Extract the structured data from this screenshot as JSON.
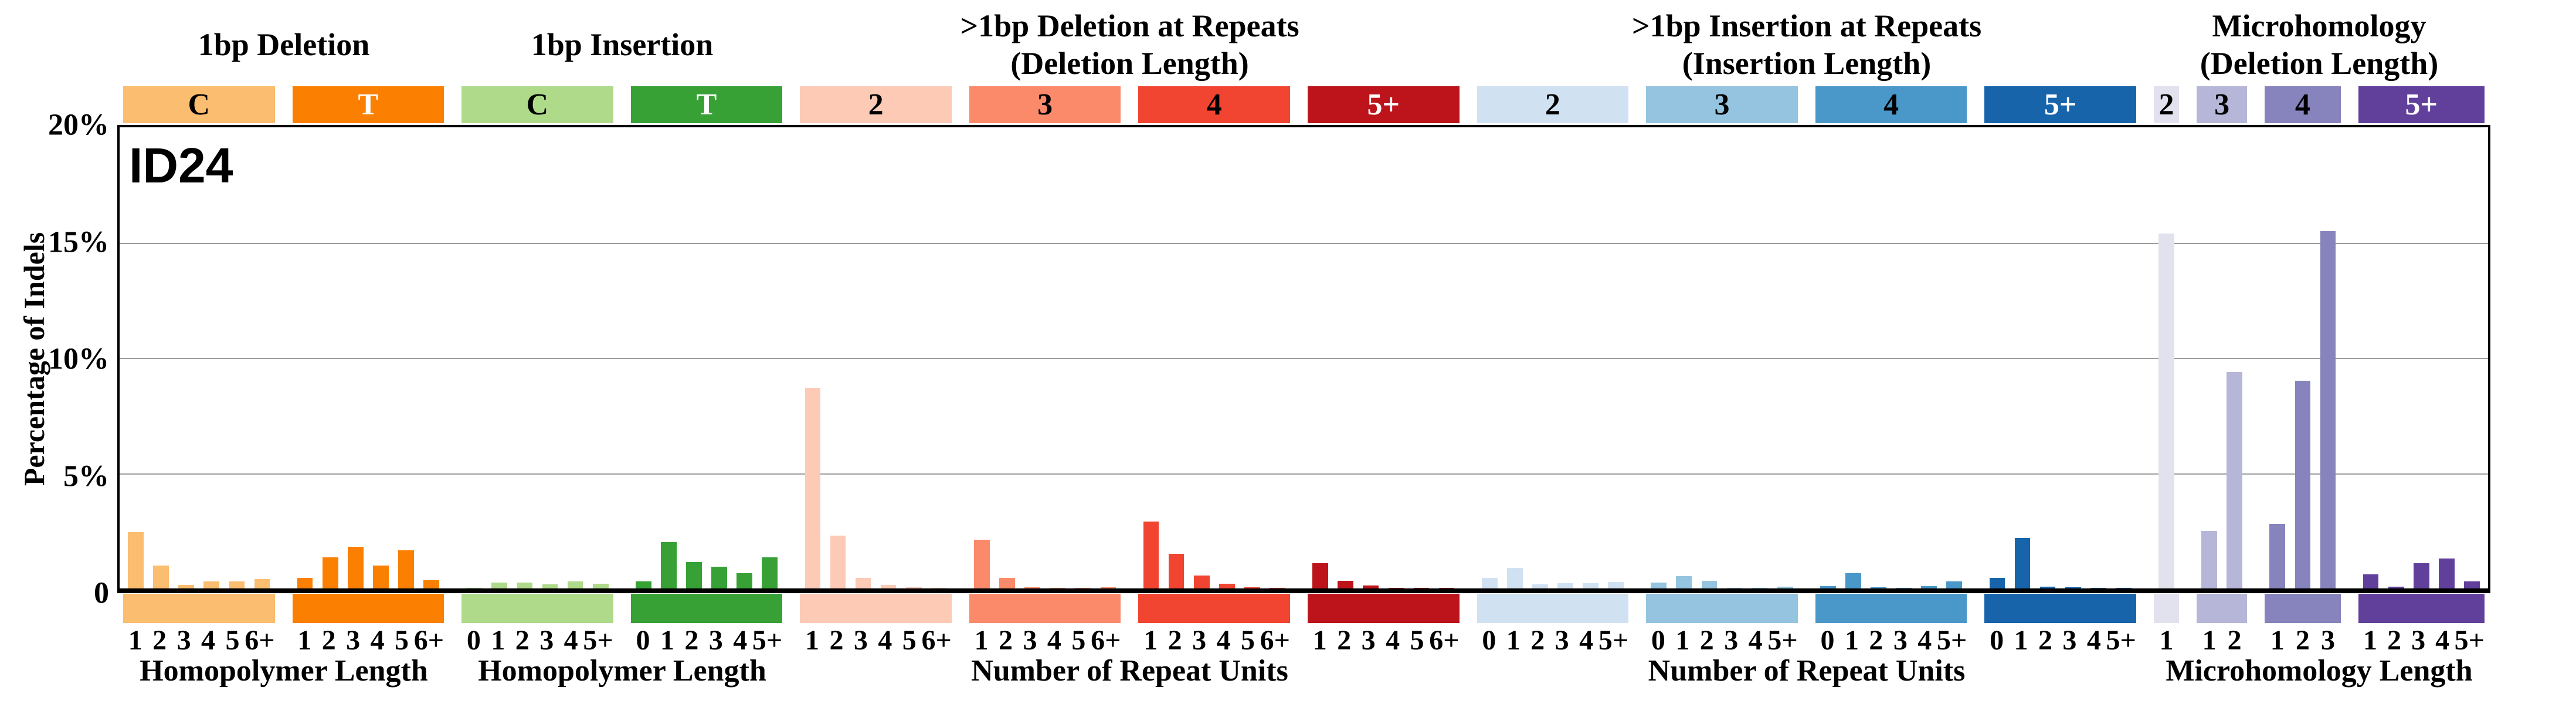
{
  "title": "ID24",
  "y_axis": {
    "label": "Percentage of Indels",
    "ticks": [
      {
        "label": "20%",
        "percent": 20
      },
      {
        "label": "15%",
        "percent": 15
      },
      {
        "label": "10%",
        "percent": 10
      },
      {
        "label": "5%",
        "percent": 5
      },
      {
        "label": "0",
        "percent": 0
      }
    ],
    "max_percent": 20,
    "gridlines_percent": [
      15,
      10,
      5
    ]
  },
  "sections": [
    {
      "title_lines": [
        "1bp Deletion"
      ],
      "group_indices": [
        0,
        1
      ],
      "axis_label": "Homopolymer Length"
    },
    {
      "title_lines": [
        "1bp Insertion"
      ],
      "group_indices": [
        2,
        3
      ],
      "axis_label": "Homopolymer Length"
    },
    {
      "title_lines": [
        ">1bp Deletion at Repeats",
        "(Deletion Length)"
      ],
      "group_indices": [
        4,
        5,
        6,
        7
      ],
      "axis_label": "Number of Repeat Units"
    },
    {
      "title_lines": [
        ">1bp Insertion at Repeats",
        "(Insertion Length)"
      ],
      "group_indices": [
        8,
        9,
        10,
        11
      ],
      "axis_label": "Number of Repeat Units"
    },
    {
      "title_lines": [
        "Microhomology",
        "(Deletion Length)"
      ],
      "group_indices": [
        12,
        13,
        14,
        15
      ],
      "axis_label": "Microhomology Length"
    }
  ],
  "chart_data": {
    "type": "bar",
    "title": "ID24",
    "ylabel": "Percentage of Indels",
    "ylim": [
      0,
      20
    ],
    "unit": "percent",
    "grid": "horizontal at 5, 10, 15",
    "legend_position": "none",
    "groups": [
      {
        "section": "1bp Deletion",
        "category": "C",
        "color": "#FBBD6F",
        "label_color": "#000000",
        "x_ticks": [
          "1",
          "2",
          "3",
          "4",
          "5",
          "6+"
        ],
        "values": [
          2.45,
          1.0,
          0.15,
          0.3,
          0.3,
          0.4
        ]
      },
      {
        "section": "1bp Deletion",
        "category": "T",
        "color": "#FB8001",
        "label_color": "#FFFFFF",
        "x_ticks": [
          "1",
          "2",
          "3",
          "4",
          "5",
          "6+"
        ],
        "values": [
          0.45,
          1.35,
          1.8,
          1.0,
          1.65,
          0.35
        ]
      },
      {
        "section": "1bp Insertion",
        "category": "C",
        "color": "#AEDA8A",
        "label_color": "#000000",
        "x_ticks": [
          "0",
          "1",
          "2",
          "3",
          "4",
          "5+"
        ],
        "values": [
          0.03,
          0.25,
          0.25,
          0.17,
          0.3,
          0.2
        ]
      },
      {
        "section": "1bp Insertion",
        "category": "T",
        "color": "#37A135",
        "label_color": "#FFFFFF",
        "x_ticks": [
          "0",
          "1",
          "2",
          "3",
          "4",
          "5+"
        ],
        "values": [
          0.3,
          2.0,
          1.15,
          0.95,
          0.65,
          1.35
        ]
      },
      {
        "section": ">1bp Deletion at Repeats (Deletion Length)",
        "category": "2",
        "color": "#FCCAB5",
        "label_color": "#000000",
        "x_ticks": [
          "1",
          "2",
          "3",
          "4",
          "5",
          "6+"
        ],
        "values": [
          8.7,
          2.3,
          0.45,
          0.15,
          0.05,
          0.03
        ]
      },
      {
        "section": ">1bp Deletion at Repeats (Deletion Length)",
        "category": "3",
        "color": "#FB8A6B",
        "label_color": "#000000",
        "x_ticks": [
          "1",
          "2",
          "3",
          "4",
          "5",
          "6+"
        ],
        "values": [
          2.1,
          0.45,
          0.05,
          0.03,
          0.03,
          0.05
        ]
      },
      {
        "section": ">1bp Deletion at Repeats (Deletion Length)",
        "category": "4",
        "color": "#F14532",
        "label_color": "#000000",
        "x_ticks": [
          "1",
          "2",
          "3",
          "4",
          "5",
          "6+"
        ],
        "values": [
          2.9,
          1.5,
          0.55,
          0.2,
          0.05,
          0.03
        ]
      },
      {
        "section": ">1bp Deletion at Repeats (Deletion Length)",
        "category": "5+",
        "color": "#BC141A",
        "label_color": "#FFFFFF",
        "x_ticks": [
          "1",
          "2",
          "3",
          "4",
          "5",
          "6+"
        ],
        "values": [
          1.1,
          0.33,
          0.12,
          0.02,
          0.02,
          0.02
        ]
      },
      {
        "section": ">1bp Insertion at Repeats (Insertion Length)",
        "category": "2",
        "color": "#D0E1F2",
        "label_color": "#000000",
        "x_ticks": [
          "0",
          "1",
          "2",
          "3",
          "4",
          "5+"
        ],
        "values": [
          0.45,
          0.9,
          0.17,
          0.22,
          0.22,
          0.28
        ]
      },
      {
        "section": ">1bp Insertion at Repeats (Insertion Length)",
        "category": "3",
        "color": "#94C4DF",
        "label_color": "#000000",
        "x_ticks": [
          "0",
          "1",
          "2",
          "3",
          "4",
          "5+"
        ],
        "values": [
          0.26,
          0.53,
          0.34,
          0.02,
          0.02,
          0.08
        ]
      },
      {
        "section": ">1bp Insertion at Repeats (Insertion Length)",
        "category": "4",
        "color": "#4A98C9",
        "label_color": "#000000",
        "x_ticks": [
          "0",
          "1",
          "2",
          "3",
          "4",
          "5+"
        ],
        "values": [
          0.1,
          0.66,
          0.06,
          0.02,
          0.1,
          0.3
        ]
      },
      {
        "section": ">1bp Insertion at Repeats (Insertion Length)",
        "category": "5+",
        "color": "#1764AB",
        "label_color": "#FFFFFF",
        "x_ticks": [
          "0",
          "1",
          "2",
          "3",
          "4",
          "5+"
        ],
        "values": [
          0.45,
          2.2,
          0.07,
          0.05,
          0.02,
          0.02
        ]
      },
      {
        "section": "Microhomology (Deletion Length)",
        "category": "2",
        "color": "#E2E2EF",
        "label_color": "#000000",
        "x_ticks": [
          "1"
        ],
        "values": [
          15.4
        ]
      },
      {
        "section": "Microhomology (Deletion Length)",
        "category": "3",
        "color": "#B6B6D8",
        "label_color": "#000000",
        "x_ticks": [
          "1",
          "2"
        ],
        "values": [
          2.5,
          9.4
        ]
      },
      {
        "section": "Microhomology (Deletion Length)",
        "category": "4",
        "color": "#8683BD",
        "label_color": "#000000",
        "x_ticks": [
          "1",
          "2",
          "3"
        ],
        "values": [
          2.8,
          9.0,
          15.5
        ]
      },
      {
        "section": "Microhomology (Deletion Length)",
        "category": "5+",
        "color": "#61409B",
        "label_color": "#FFFFFF",
        "x_ticks": [
          "1",
          "2",
          "3",
          "4",
          "5+"
        ],
        "values": [
          0.6,
          0.08,
          1.1,
          1.3,
          0.3
        ]
      }
    ]
  }
}
